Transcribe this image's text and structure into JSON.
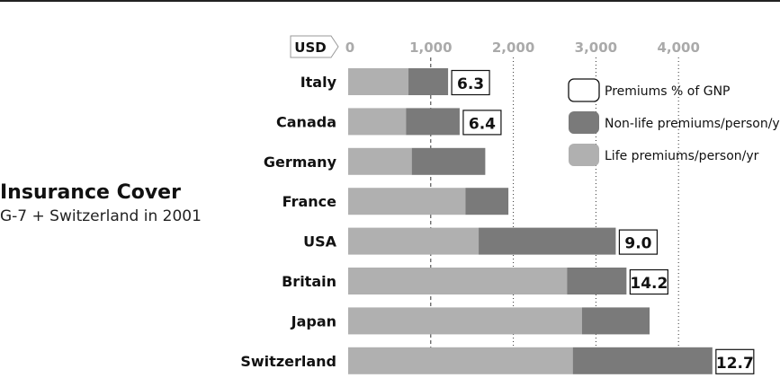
{
  "chart_data": {
    "type": "bar",
    "orientation": "horizontal",
    "stacked": true,
    "title": "Insurance Cover",
    "subtitle": "G-7 + Switzerland in 2001",
    "axis_unit_label": "USD",
    "xlim": [
      0,
      4800
    ],
    "x_ticks": [
      0,
      1000,
      2000,
      3000,
      4000
    ],
    "x_tick_labels": [
      "0",
      "1,000",
      "2,000",
      "3,000",
      "4,000"
    ],
    "grid": "vertical dotted at 2,000, 3,000 and 4,000; dashed at 1,000",
    "categories": [
      "Italy",
      "Canada",
      "Germany",
      "France",
      "USA",
      "Britain",
      "Japan",
      "Switzerland"
    ],
    "series": [
      {
        "name": "Life premiums/person/yr",
        "color": "#b0b0b0",
        "values": [
          730,
          700,
          770,
          1420,
          1580,
          2650,
          2830,
          2720
        ]
      },
      {
        "name": "Non-life premiums/person/yr.",
        "color": "#7a7a7a",
        "values": [
          480,
          650,
          890,
          520,
          1660,
          720,
          820,
          1690
        ]
      }
    ],
    "gnp_label_series": "Premiums % of GNP",
    "gnp_labels": [
      "6.3",
      "6.4",
      "",
      "",
      "9.0",
      "14.2",
      "",
      "12.7"
    ],
    "legend": {
      "position": "top-right",
      "items": [
        {
          "label": "Premiums % of GNP",
          "swatch": "outline"
        },
        {
          "label": "Non-life premiums/person/yr.",
          "swatch": "#7a7a7a"
        },
        {
          "label": "Life premiums/person/yr",
          "swatch": "#b0b0b0"
        }
      ]
    }
  }
}
